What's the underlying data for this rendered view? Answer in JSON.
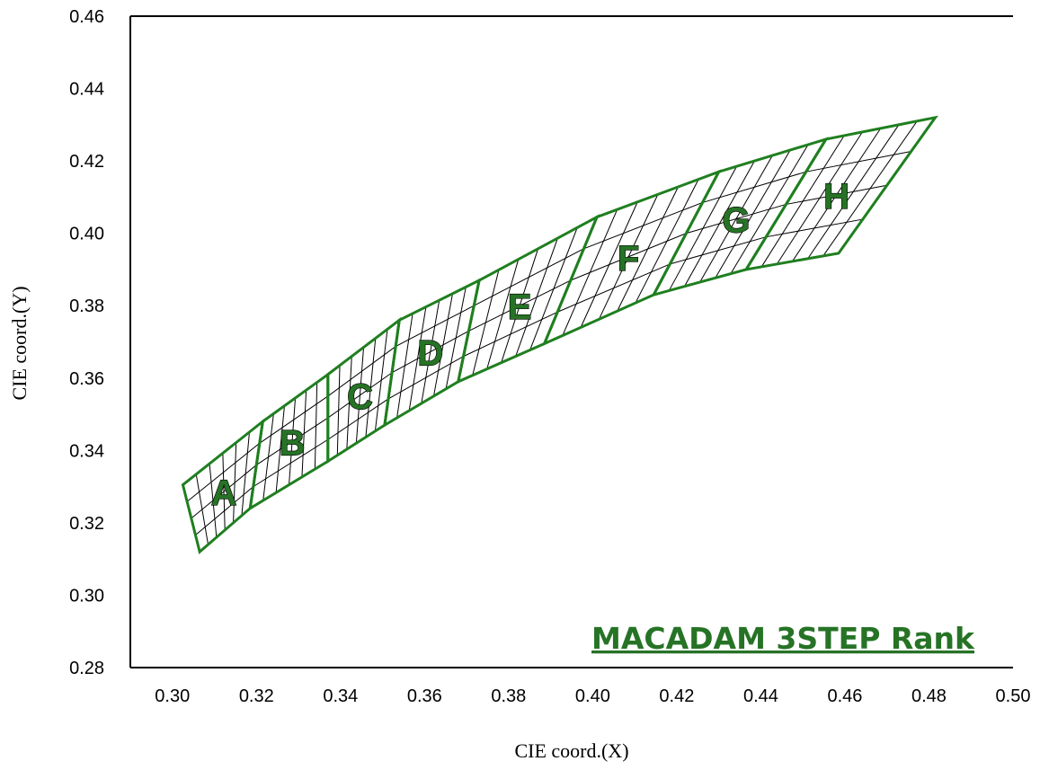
{
  "chart_data": {
    "type": "diagram",
    "title": "MACADAM 3STEP Rank",
    "xlabel": "CIE coord.(X)",
    "ylabel": "CIE coord.(Y)",
    "xlim": [
      0.29,
      0.5
    ],
    "ylim": [
      0.28,
      0.46
    ],
    "x_ticks": [
      "0.30",
      "0.32",
      "0.34",
      "0.36",
      "0.38",
      "0.40",
      "0.42",
      "0.44",
      "0.46",
      "0.48",
      "0.50"
    ],
    "y_ticks": [
      "0.28",
      "0.30",
      "0.32",
      "0.34",
      "0.36",
      "0.38",
      "0.40",
      "0.42",
      "0.44",
      "0.46"
    ],
    "grid": false,
    "colors": {
      "outline": "#1f7f1f",
      "letter": "#267326",
      "grid_lines": "#000000",
      "title": "#267326"
    },
    "ranks": [
      {
        "label": "A",
        "corners": [
          [
            0.3025,
            0.3305
          ],
          [
            0.3215,
            0.348
          ],
          [
            0.3185,
            0.324
          ],
          [
            0.3065,
            0.312
          ]
        ]
      },
      {
        "label": "B",
        "corners": [
          [
            0.3215,
            0.348
          ],
          [
            0.337,
            0.361
          ],
          [
            0.337,
            0.337
          ],
          [
            0.3185,
            0.324
          ]
        ]
      },
      {
        "label": "C",
        "corners": [
          [
            0.337,
            0.361
          ],
          [
            0.354,
            0.376
          ],
          [
            0.3505,
            0.347
          ],
          [
            0.337,
            0.337
          ]
        ]
      },
      {
        "label": "D",
        "corners": [
          [
            0.354,
            0.376
          ],
          [
            0.373,
            0.387
          ],
          [
            0.368,
            0.359
          ],
          [
            0.3505,
            0.347
          ]
        ]
      },
      {
        "label": "E",
        "corners": [
          [
            0.373,
            0.387
          ],
          [
            0.401,
            0.4045
          ],
          [
            0.3885,
            0.3695
          ],
          [
            0.368,
            0.359
          ]
        ]
      },
      {
        "label": "F",
        "corners": [
          [
            0.401,
            0.4045
          ],
          [
            0.43,
            0.417
          ],
          [
            0.4145,
            0.383
          ],
          [
            0.3885,
            0.3695
          ]
        ]
      },
      {
        "label": "G",
        "corners": [
          [
            0.43,
            0.417
          ],
          [
            0.4555,
            0.426
          ],
          [
            0.4365,
            0.39
          ],
          [
            0.4145,
            0.383
          ]
        ]
      },
      {
        "label": "H",
        "corners": [
          [
            0.4555,
            0.426
          ],
          [
            0.4815,
            0.432
          ],
          [
            0.4585,
            0.3945
          ],
          [
            0.4365,
            0.39
          ]
        ]
      }
    ]
  }
}
